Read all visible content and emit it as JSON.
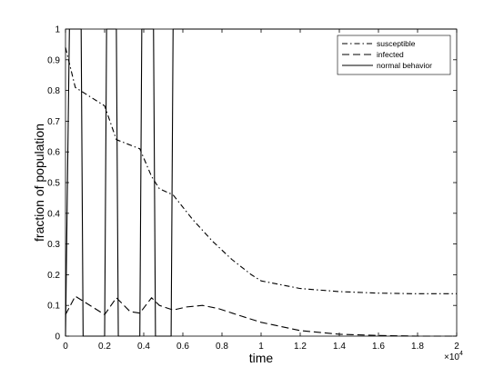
{
  "chart_data": {
    "type": "line",
    "title": "",
    "xlabel": "time",
    "ylabel": "fraction of population",
    "x_multiplier_label": "×10",
    "x_multiplier_exponent": "4",
    "xlim": [
      0,
      2
    ],
    "ylim": [
      0,
      1
    ],
    "x_ticks": [
      "0",
      "0.2",
      "0.4",
      "0.6",
      "0.8",
      "1",
      "1.2",
      "1.4",
      "1.6",
      "1.8",
      "2"
    ],
    "y_ticks": [
      "0",
      "0.1",
      "0.2",
      "0.3",
      "0.4",
      "0.5",
      "0.6",
      "0.7",
      "0.8",
      "0.9",
      "1"
    ],
    "legend_position": "top-right",
    "grid": false,
    "series": [
      {
        "name": "susceptible",
        "style": "dash-dot",
        "x": [
          0.0,
          0.05,
          0.2,
          0.26,
          0.38,
          0.44,
          0.48,
          0.55,
          0.65,
          0.75,
          0.85,
          0.95,
          1.0,
          1.2,
          1.4,
          1.6,
          1.8,
          2.0
        ],
        "y": [
          0.94,
          0.81,
          0.75,
          0.64,
          0.61,
          0.52,
          0.48,
          0.46,
          0.38,
          0.31,
          0.25,
          0.2,
          0.18,
          0.155,
          0.145,
          0.14,
          0.138,
          0.138
        ]
      },
      {
        "name": "infected",
        "style": "dashed",
        "x": [
          0.0,
          0.05,
          0.1,
          0.2,
          0.26,
          0.33,
          0.38,
          0.44,
          0.48,
          0.55,
          0.62,
          0.7,
          0.78,
          0.9,
          1.0,
          1.2,
          1.4,
          1.6,
          1.8,
          2.0
        ],
        "y": [
          0.07,
          0.13,
          0.11,
          0.07,
          0.125,
          0.08,
          0.075,
          0.125,
          0.1,
          0.085,
          0.095,
          0.1,
          0.09,
          0.065,
          0.045,
          0.018,
          0.006,
          0.002,
          0.0,
          0.0
        ]
      },
      {
        "name": "normal behavior",
        "style": "solid",
        "x": [
          0.0,
          0.02,
          0.03,
          0.08,
          0.09,
          0.2,
          0.21,
          0.26,
          0.27,
          0.38,
          0.39,
          0.45,
          0.46,
          0.54,
          0.55,
          2.0
        ],
        "y": [
          0,
          1,
          1,
          1,
          0,
          0,
          1,
          1,
          0,
          0,
          1,
          1,
          0,
          0,
          1,
          1
        ]
      }
    ]
  }
}
